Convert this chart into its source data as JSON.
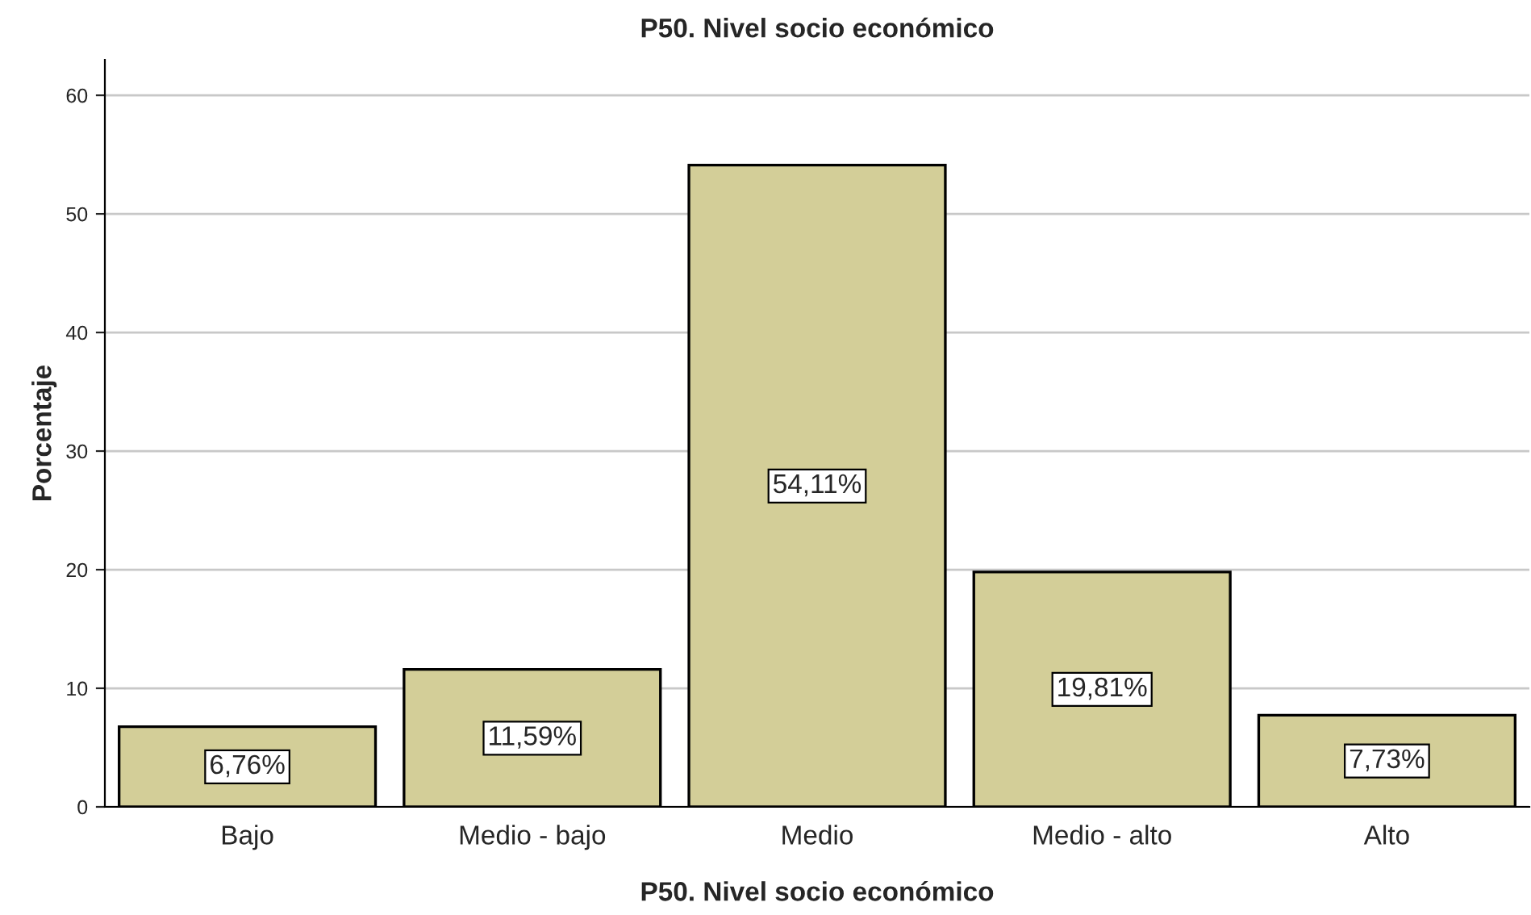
{
  "chart_data": {
    "type": "bar",
    "title": "P50. Nivel socio económico",
    "xlabel": "P50. Nivel socio económico",
    "ylabel": "Porcentaje",
    "categories": [
      "Bajo",
      "Medio - bajo",
      "Medio",
      "Medio - alto",
      "Alto"
    ],
    "values": [
      6.76,
      11.59,
      54.11,
      19.81,
      7.73
    ],
    "value_labels": [
      "6,76%",
      "11,59%",
      "54,11%",
      "19,81%",
      "7,73%"
    ],
    "color": "#d3ce98",
    "ylim": [
      0,
      63
    ],
    "yticks": [
      0,
      10,
      20,
      30,
      40,
      50,
      60
    ],
    "grid": "y"
  }
}
